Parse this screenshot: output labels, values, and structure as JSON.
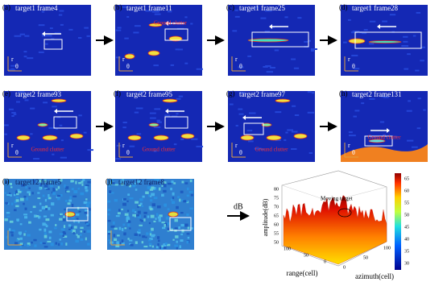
{
  "panels": [
    {
      "label": "(a)",
      "title": "target1 frame4",
      "annotations": []
    },
    {
      "label": "(b)",
      "title": "target1 frame11",
      "annotations": [
        "Ground clutter"
      ]
    },
    {
      "label": "(c)",
      "title": "target1 frame25",
      "annotations": []
    },
    {
      "label": "(d)",
      "title": "target1 frame28",
      "annotations": []
    },
    {
      "label": "(e)",
      "title": "target2 frame93",
      "annotations": [
        "Ground clutter"
      ]
    },
    {
      "label": "(f)",
      "title": "target2 frame95",
      "annotations": [
        "Ground clutter"
      ]
    },
    {
      "label": "(g)",
      "title": "target2 frame97",
      "annotations": [
        "Ground clutter"
      ]
    },
    {
      "label": "(h)",
      "title": "target2 frame131",
      "annotations": [
        "Ground clutter"
      ]
    },
    {
      "label": "(i)",
      "title": "target12 frame5",
      "annotations": []
    },
    {
      "label": "(j)",
      "title": "target12 frame8",
      "annotations": []
    }
  ],
  "axis_labels": {
    "r": "r",
    "theta": "θ"
  },
  "arrow_label": "dB",
  "surface_plot": {
    "z_label": "amplitude(dB)",
    "x_label": "range(cell)",
    "y_label": "azimuth(cell)",
    "annotation": "Moving target",
    "z_ticks": [
      "80",
      "75",
      "70",
      "65",
      "60",
      "55",
      "50"
    ],
    "x_ticks": [
      "100",
      "50",
      "0"
    ],
    "y_ticks": [
      "0",
      "50",
      "100"
    ],
    "colorbar_ticks": [
      "65",
      "60",
      "55",
      "50",
      "45",
      "40",
      "35",
      "30"
    ]
  }
}
